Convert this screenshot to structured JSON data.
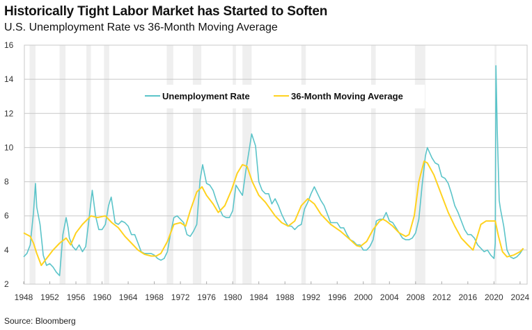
{
  "chart_data": {
    "type": "line",
    "title": "Historically Tight Labor Market has Started to Soften",
    "subtitle": "U.S. Unemployment Rate vs 36-Month Moving Average",
    "source": "Source: Bloomberg",
    "xlabel": "",
    "ylabel": "",
    "xlim": [
      1948,
      2025.1
    ],
    "ylim": [
      2,
      16
    ],
    "x_ticks": [
      "1948",
      "1952",
      "1956",
      "1960",
      "1964",
      "1968",
      "1972",
      "1976",
      "1980",
      "1984",
      "1988",
      "1992",
      "1996",
      "2000",
      "2004",
      "2008",
      "2012",
      "2016",
      "2020",
      "2024"
    ],
    "y_ticks": [
      "2",
      "4",
      "6",
      "8",
      "10",
      "12",
      "14",
      "16"
    ],
    "grid": true,
    "legend_position": "top-center",
    "recessions": [
      [
        1948.9,
        1949.8
      ],
      [
        1953.5,
        1954.4
      ],
      [
        1957.6,
        1958.3
      ],
      [
        1960.3,
        1961.1
      ],
      [
        1969.9,
        1970.9
      ],
      [
        1973.9,
        1975.2
      ],
      [
        1980.0,
        1980.5
      ],
      [
        1981.5,
        1982.9
      ],
      [
        1990.5,
        1991.2
      ],
      [
        2001.2,
        2001.9
      ],
      [
        2007.9,
        2009.5
      ],
      [
        2020.1,
        2020.4
      ]
    ],
    "series": [
      {
        "name": "Unemployment Rate",
        "color": "#5BC4C9",
        "x": [
          1948.0,
          1948.5,
          1949.0,
          1949.5,
          1949.8,
          1950.0,
          1950.5,
          1951.0,
          1951.5,
          1952.0,
          1952.5,
          1953.0,
          1953.5,
          1954.0,
          1954.5,
          1954.8,
          1955.0,
          1955.5,
          1956.0,
          1956.5,
          1957.0,
          1957.5,
          1958.0,
          1958.5,
          1959.0,
          1959.5,
          1960.0,
          1960.5,
          1961.0,
          1961.4,
          1962.0,
          1962.5,
          1963.0,
          1963.5,
          1964.0,
          1964.5,
          1965.0,
          1965.5,
          1966.0,
          1966.5,
          1967.0,
          1967.5,
          1968.0,
          1968.5,
          1969.0,
          1969.5,
          1970.0,
          1970.5,
          1971.0,
          1971.5,
          1972.0,
          1972.5,
          1973.0,
          1973.5,
          1974.0,
          1974.5,
          1975.0,
          1975.4,
          1976.0,
          1976.5,
          1977.0,
          1977.5,
          1978.0,
          1978.5,
          1979.0,
          1979.5,
          1980.0,
          1980.5,
          1981.0,
          1981.5,
          1982.0,
          1982.5,
          1982.9,
          1983.5,
          1984.0,
          1984.5,
          1985.0,
          1985.5,
          1986.0,
          1986.5,
          1987.0,
          1987.5,
          1988.0,
          1988.5,
          1989.0,
          1989.5,
          1990.0,
          1990.5,
          1991.0,
          1991.5,
          1992.0,
          1992.5,
          1993.0,
          1993.5,
          1994.0,
          1994.5,
          1995.0,
          1995.5,
          1996.0,
          1996.5,
          1997.0,
          1997.5,
          1998.0,
          1998.5,
          1999.0,
          1999.5,
          2000.0,
          2000.5,
          2001.0,
          2001.5,
          2002.0,
          2002.5,
          2003.0,
          2003.5,
          2004.0,
          2004.5,
          2005.0,
          2005.5,
          2006.0,
          2006.5,
          2007.0,
          2007.5,
          2008.0,
          2008.5,
          2009.0,
          2009.5,
          2009.8,
          2010.5,
          2011.0,
          2011.5,
          2012.0,
          2012.5,
          2013.0,
          2013.5,
          2014.0,
          2014.5,
          2015.0,
          2015.5,
          2016.0,
          2016.5,
          2017.0,
          2017.5,
          2018.0,
          2018.5,
          2019.0,
          2019.5,
          2020.0,
          2020.2,
          2020.3,
          2020.5,
          2020.8,
          2021.0,
          2021.5,
          2022.0,
          2022.5,
          2023.0,
          2023.5,
          2024.0,
          2024.5
        ],
        "values": [
          3.6,
          3.8,
          4.3,
          6.2,
          7.9,
          6.5,
          5.5,
          3.7,
          3.1,
          3.2,
          3.0,
          2.7,
          2.5,
          4.9,
          5.9,
          5.3,
          4.7,
          4.2,
          4.0,
          4.3,
          3.9,
          4.2,
          5.8,
          7.5,
          6.0,
          5.2,
          5.2,
          5.5,
          6.6,
          7.1,
          5.6,
          5.5,
          5.7,
          5.6,
          5.4,
          4.9,
          4.9,
          4.4,
          3.9,
          3.8,
          3.8,
          3.8,
          3.7,
          3.5,
          3.4,
          3.5,
          3.9,
          5.0,
          5.9,
          6.0,
          5.8,
          5.6,
          4.9,
          4.8,
          5.1,
          5.5,
          8.1,
          9.0,
          7.9,
          7.8,
          7.5,
          6.9,
          6.4,
          6.0,
          5.9,
          5.9,
          6.3,
          7.8,
          7.5,
          7.2,
          8.6,
          9.8,
          10.8,
          10.1,
          8.0,
          7.5,
          7.3,
          7.3,
          6.7,
          7.0,
          6.6,
          6.1,
          5.7,
          5.4,
          5.4,
          5.2,
          5.4,
          5.5,
          6.4,
          6.8,
          7.3,
          7.7,
          7.3,
          6.9,
          6.6,
          6.1,
          5.6,
          5.6,
          5.6,
          5.3,
          5.3,
          4.9,
          4.6,
          4.5,
          4.3,
          4.3,
          4.0,
          4.0,
          4.2,
          4.6,
          5.7,
          5.8,
          5.8,
          6.2,
          5.7,
          5.6,
          5.3,
          5.0,
          4.7,
          4.6,
          4.6,
          4.7,
          5.0,
          5.8,
          7.8,
          9.5,
          10.0,
          9.4,
          9.1,
          9.0,
          8.3,
          8.2,
          7.9,
          7.3,
          6.6,
          6.2,
          5.7,
          5.2,
          4.9,
          4.9,
          4.7,
          4.3,
          4.1,
          3.9,
          4.0,
          3.7,
          3.5,
          4.4,
          14.8,
          11.0,
          6.9,
          6.4,
          5.4,
          4.0,
          3.6,
          3.5,
          3.6,
          3.8,
          4.1
        ]
      },
      {
        "name": "36-Month Moving Average",
        "color": "#FFD21F",
        "x": [
          1948.0,
          1949.0,
          1949.5,
          1950.0,
          1950.7,
          1951.5,
          1952.5,
          1953.5,
          1954.5,
          1955.2,
          1956.0,
          1957.0,
          1958.3,
          1959.3,
          1960.5,
          1961.5,
          1962.5,
          1963.5,
          1964.5,
          1965.5,
          1966.5,
          1967.5,
          1968.3,
          1969.0,
          1970.0,
          1971.0,
          1972.0,
          1972.8,
          1973.5,
          1974.5,
          1975.3,
          1976.0,
          1977.0,
          1977.8,
          1978.8,
          1979.8,
          1980.7,
          1981.5,
          1982.2,
          1983.0,
          1984.0,
          1985.0,
          1986.5,
          1987.5,
          1988.5,
          1989.5,
          1990.5,
          1991.5,
          1992.5,
          1993.5,
          1995.0,
          1996.5,
          1998.0,
          1999.0,
          1999.5,
          2000.5,
          2001.5,
          2002.5,
          2003.0,
          2003.5,
          2004.5,
          2005.5,
          2006.5,
          2007.0,
          2007.8,
          2008.5,
          2009.3,
          2009.8,
          2010.8,
          2012.0,
          2013.0,
          2014.0,
          2015.0,
          2016.0,
          2016.8,
          2017.3,
          2018.0,
          2018.8,
          2020.2,
          2020.7,
          2021.3,
          2022.0,
          2023.0,
          2024.0,
          2024.5
        ],
        "values": [
          5.0,
          4.8,
          4.4,
          3.8,
          3.1,
          3.5,
          4.0,
          4.4,
          4.7,
          4.3,
          5.0,
          5.5,
          6.0,
          5.9,
          6.0,
          5.6,
          5.3,
          4.8,
          4.4,
          4.0,
          3.75,
          3.65,
          3.65,
          3.8,
          4.5,
          5.5,
          5.6,
          5.4,
          6.3,
          7.4,
          7.7,
          7.2,
          6.7,
          6.2,
          6.6,
          7.5,
          8.5,
          9.0,
          8.9,
          8.0,
          7.2,
          6.8,
          6.0,
          5.6,
          5.4,
          5.7,
          6.6,
          7.0,
          6.7,
          6.1,
          5.5,
          5.1,
          4.6,
          4.25,
          4.2,
          4.5,
          5.2,
          5.7,
          5.8,
          5.7,
          5.4,
          5.0,
          4.8,
          4.9,
          6.0,
          8.0,
          9.2,
          9.1,
          8.4,
          7.2,
          6.2,
          5.4,
          4.7,
          4.3,
          4.0,
          4.6,
          5.5,
          5.7,
          5.7,
          4.8,
          3.9,
          3.6,
          3.7,
          3.9,
          4.1
        ]
      }
    ]
  }
}
